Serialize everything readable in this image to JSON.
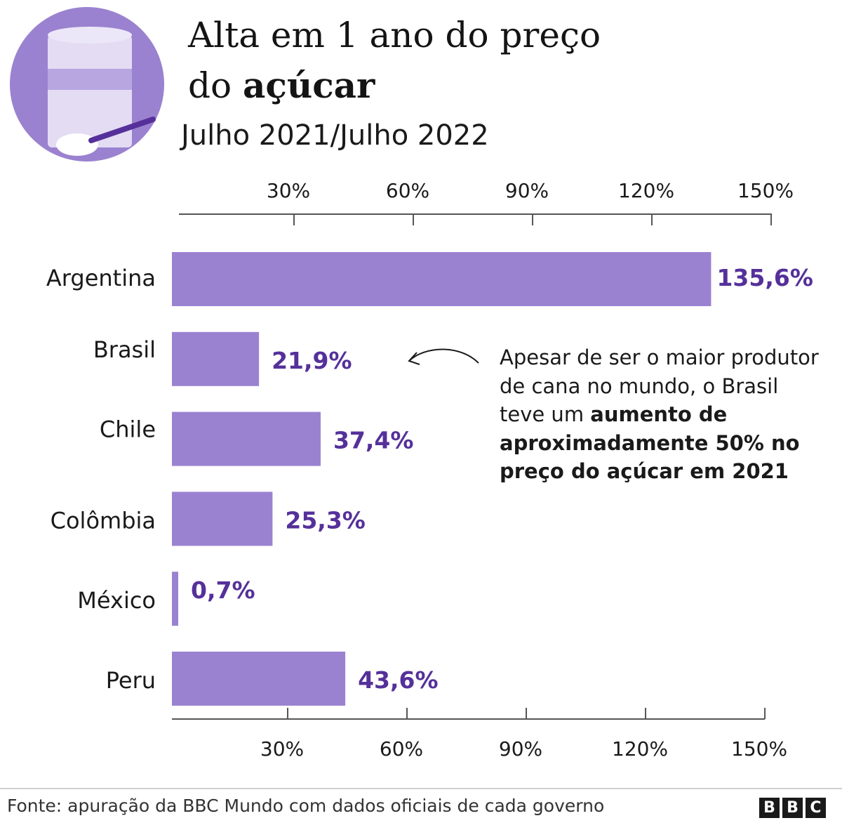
{
  "header": {
    "title_line1": "Alta em 1 ano do preço",
    "title_line2_plain": "do ",
    "title_line2_bold": "açúcar",
    "subtitle": "Julho 2021/Julho 2022"
  },
  "colors": {
    "bar": "#9b82d0",
    "value_label": "#55309a",
    "axis": "#555555",
    "icon_circle": "#9b82d0"
  },
  "icon": {
    "name": "sugar-jar-icon"
  },
  "chart_data": {
    "type": "bar",
    "orientation": "horizontal",
    "categories": [
      "Argentina",
      "Brasil",
      "Chile",
      "Colômbia",
      "México",
      "Peru"
    ],
    "values": [
      135.6,
      21.9,
      37.4,
      25.3,
      0.7,
      43.6
    ],
    "value_labels": [
      "135,6%",
      "21,9%",
      "37,4%",
      "25,3%",
      "0,7%",
      "43,6%"
    ],
    "xlim": [
      0,
      150
    ],
    "ticks": [
      30,
      60,
      90,
      120,
      150
    ],
    "tick_labels": [
      "30%",
      "60%",
      "90%",
      "120%",
      "150%"
    ],
    "grid": false,
    "legend": "none"
  },
  "annotation": {
    "plain": "Apesar de ser o maior produtor de cana no mundo, o Brasil teve um ",
    "bold": "aumento de aproximadamente 50% no preço do açúcar em 2021"
  },
  "footer": {
    "source": "Fonte: apuração da BBC Mundo com dados oficiais de cada governo",
    "logo_letters": [
      "B",
      "B",
      "C"
    ]
  }
}
